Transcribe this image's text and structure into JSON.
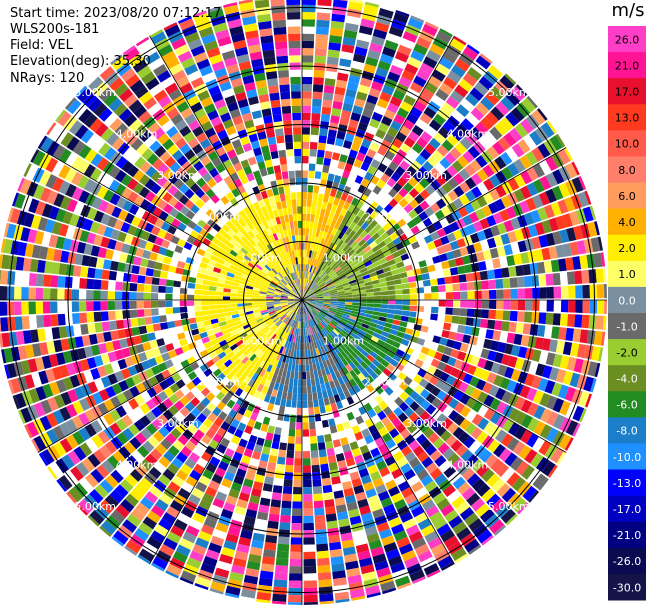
{
  "header": {
    "start_time": "Start time: 2023/08/20 07:12:17",
    "site": "WLS200s-181",
    "field": "Field: VEL",
    "elevation": "Elevation(deg): 35.30",
    "nrays": "NRays: 120"
  },
  "ring_labels": [
    "1.00km",
    "2.00km",
    "3.00km",
    "4.00km",
    "5.00km"
  ],
  "colorbar": {
    "unit": "m/s",
    "ticks": [
      "26.0",
      "21.0",
      "17.0",
      "13.0",
      "10.0",
      "8.0",
      "6.0",
      "4.0",
      "2.0",
      "1.0",
      "0.0",
      "-1.0",
      "-2.0",
      "-4.0",
      "-6.0",
      "-8.0",
      "-10.0",
      "-13.0",
      "-17.0",
      "-21.0",
      "-26.0",
      "-30.0"
    ],
    "colors": [
      "#ff3ec8",
      "#ff1493",
      "#e8102c",
      "#ff3a1f",
      "#ff5a4a",
      "#ff7f6a",
      "#ff9c5e",
      "#ffb000",
      "#ffee00",
      "#ffff66",
      "#7a8fa0",
      "#6a6a6a",
      "#9acd32",
      "#6b8e23",
      "#228b22",
      "#1c7ec9",
      "#1e90ff",
      "#0000ff",
      "#0000c0",
      "#000080",
      "#0a0a50",
      "#141448"
    ]
  },
  "chart_data": {
    "type": "ppi",
    "field": "VEL",
    "units": "m/s",
    "nrays": 120,
    "max_range_km": 5.0,
    "range_rings_km": [
      1,
      2,
      3,
      4,
      5
    ]
  }
}
